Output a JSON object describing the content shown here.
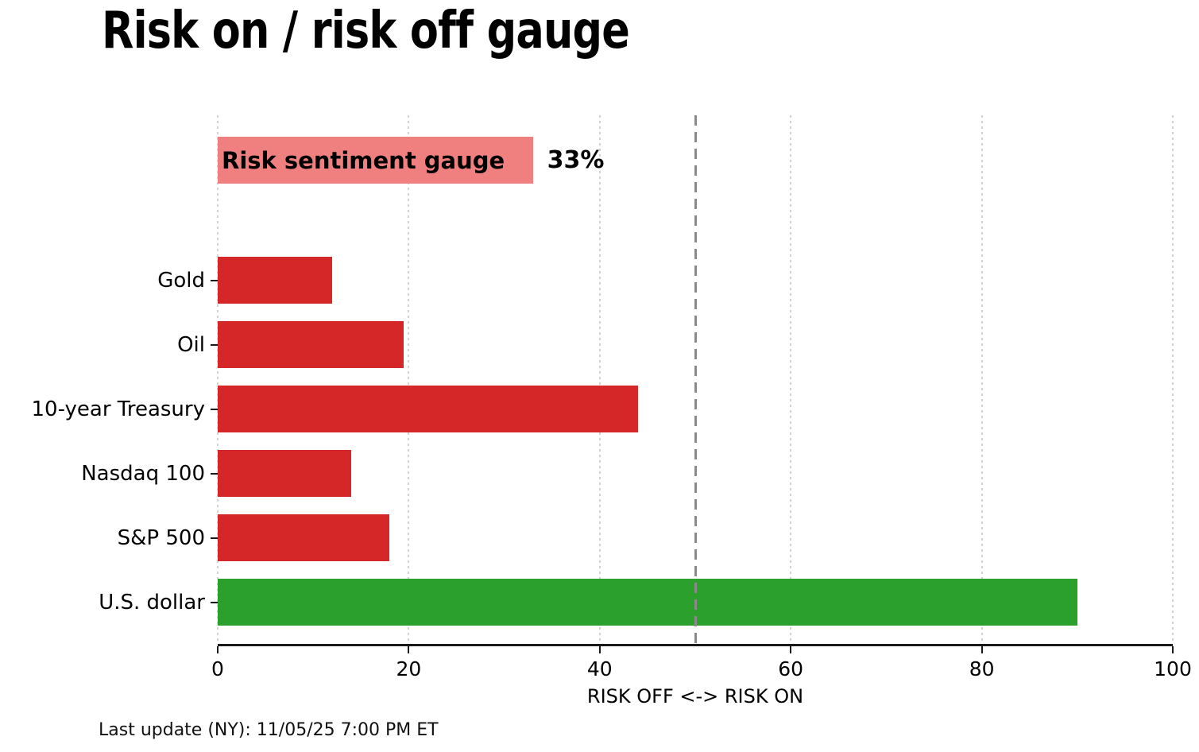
{
  "title": "Risk on / risk off gauge",
  "footer": "Last update (NY): 11/05/25 7:00 PM ET",
  "colors": {
    "risk_off_red": "#d62728",
    "risk_on_green": "#2ca02c",
    "gauge_pink": "#f08080",
    "gridline": "#d2d2d2",
    "reference_line": "#8a8a8a",
    "axis": "#1a1a1a"
  },
  "chart_data": {
    "type": "bar",
    "orientation": "horizontal",
    "title": "Risk on / risk off gauge",
    "xlabel": "RISK OFF <-> RISK ON",
    "xlim": [
      0,
      100
    ],
    "xticks": [
      0,
      20,
      40,
      60,
      80,
      100
    ],
    "grid": "vertical dotted gridlines at each x tick",
    "legend": "none",
    "reference_line_x": 50,
    "gauge": {
      "label": "Risk sentiment gauge",
      "value": 33,
      "value_label": "33%",
      "color": "#f08080"
    },
    "categories": [
      "Gold",
      "Oil",
      "10-year Treasury",
      "Nasdaq 100",
      "S&P 500",
      "U.S. dollar"
    ],
    "values": [
      12,
      19.5,
      44,
      14,
      18,
      90
    ],
    "bar_colors": [
      "#d62728",
      "#d62728",
      "#d62728",
      "#d62728",
      "#d62728",
      "#2ca02c"
    ]
  }
}
